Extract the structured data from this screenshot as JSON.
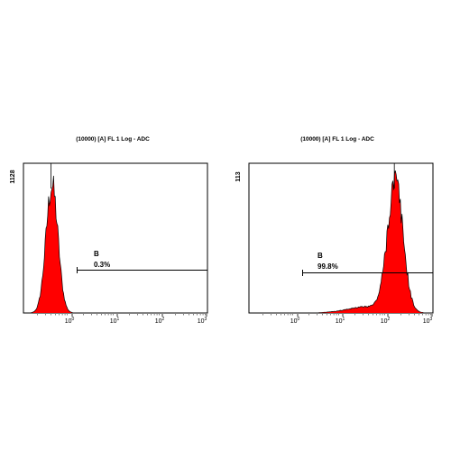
{
  "chart_data": [
    {
      "type": "histogram",
      "title": "(10000) [A] FL 1 Log - ADC",
      "ylabel": "1128",
      "x_scale": "log",
      "xlim": [
        0.1,
        1000
      ],
      "xticks": [
        "10^0",
        "10^1",
        "10^2",
        "10^3"
      ],
      "ylim": [
        0,
        1128
      ],
      "fill_color": "#ff0000",
      "outline_color": "#000000",
      "peak": {
        "log10_center": -0.38,
        "log10_width": 0.13,
        "height": 1010
      },
      "gate": {
        "label": "B",
        "percent": "0.3%",
        "x_start": 1.3,
        "x_end": 1000
      }
    },
    {
      "type": "histogram",
      "title": "(10000) [A] FL 1 Log - ADC",
      "ylabel": "113",
      "x_scale": "log",
      "xlim": [
        0.1,
        1000
      ],
      "xticks": [
        "10^0",
        "10^1",
        "10^2",
        "10^3"
      ],
      "ylim": [
        0,
        113
      ],
      "fill_color": "#ff0000",
      "outline_color": "#000000",
      "peak": {
        "log10_center": 2.18,
        "log10_width": 0.17,
        "height": 102
      },
      "gate": {
        "label": "B",
        "percent": "99.8%",
        "x_start": 1.3,
        "x_end": 1000
      }
    }
  ]
}
